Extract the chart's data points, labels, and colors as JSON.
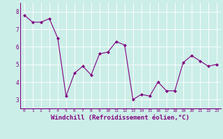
{
  "x": [
    0,
    1,
    2,
    3,
    4,
    5,
    6,
    7,
    8,
    9,
    10,
    11,
    12,
    13,
    14,
    15,
    16,
    17,
    18,
    19,
    20,
    21,
    22,
    23
  ],
  "y": [
    7.8,
    7.4,
    7.4,
    7.6,
    6.5,
    3.2,
    4.5,
    4.9,
    4.4,
    5.6,
    5.7,
    6.3,
    6.1,
    3.0,
    3.3,
    3.2,
    4.0,
    3.5,
    3.5,
    5.1,
    5.5,
    5.2,
    4.9,
    5.0
  ],
  "line_color": "#800080",
  "marker": "D",
  "markersize": 2.0,
  "linewidth": 0.8,
  "xlabel": "Windchill (Refroidissement éolien,°C)",
  "xlabel_fontsize": 6.5,
  "xtick_labels": [
    "0",
    "1",
    "2",
    "3",
    "4",
    "5",
    "6",
    "7",
    "8",
    "9",
    "10",
    "11",
    "12",
    "13",
    "14",
    "15",
    "16",
    "17",
    "18",
    "19",
    "20",
    "21",
    "22",
    "23"
  ],
  "ylim": [
    2.5,
    8.5
  ],
  "yticks": [
    3,
    4,
    5,
    6,
    7,
    8
  ],
  "background_color": "#cceee8",
  "grid_color": "#ffffff",
  "tick_color": "#800080",
  "label_color": "#800080"
}
